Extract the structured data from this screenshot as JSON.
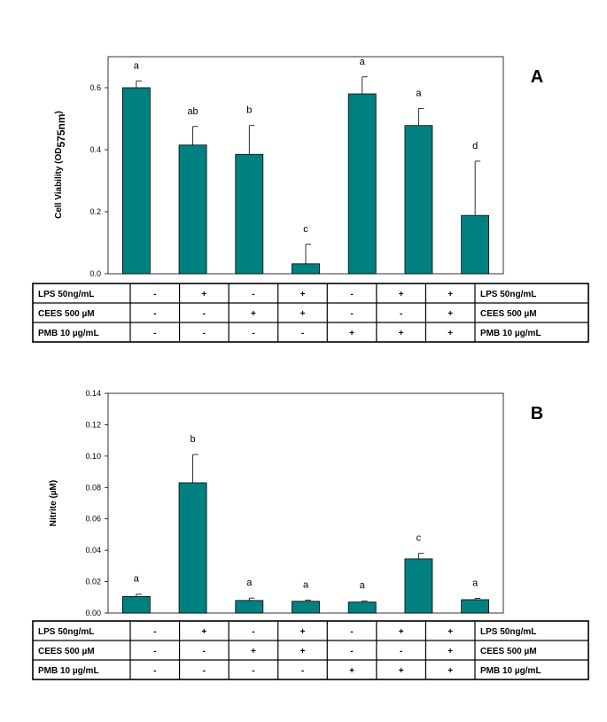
{
  "chart_data": [
    {
      "type": "bar",
      "panel_label": "A",
      "ylabel": "Cell Viability (OD",
      "ylabel_sub": "575nm",
      "ylabel_close": ")",
      "ylim": [
        0,
        0.7
      ],
      "yticks": [
        "0.0",
        "0.2",
        "0.4",
        "0.6"
      ],
      "ytick_values": [
        0,
        0.2,
        0.4,
        0.6
      ],
      "values": [
        0.6,
        0.415,
        0.385,
        0.032,
        0.58,
        0.478,
        0.188
      ],
      "errors": [
        0.022,
        0.06,
        0.093,
        0.063,
        0.055,
        0.055,
        0.175
      ],
      "significance": [
        "a",
        "ab",
        "b",
        "c",
        "a",
        "a",
        "d"
      ],
      "bar_color": "#008080",
      "table": {
        "rows": [
          {
            "label": "LPS   50ng/mL",
            "right_label": "LPS   50ng/mL",
            "symbols": [
              "-",
              "+",
              "-",
              "+",
              "-",
              "+",
              "+"
            ]
          },
          {
            "label": "CEES  500 µM",
            "right_label": "CEES  500 µM",
            "symbols": [
              "-",
              "-",
              "+",
              "+",
              "-",
              "-",
              "+"
            ]
          },
          {
            "label": "PMB   10 µg/mL",
            "right_label": "PMB   10 µg/mL",
            "symbols": [
              "-",
              "-",
              "-",
              "-",
              "+",
              "+",
              "+"
            ]
          }
        ]
      }
    },
    {
      "type": "bar",
      "panel_label": "B",
      "ylabel": "Nitrite (",
      "ylabel_mu": "µ",
      "ylabel_close": "M)",
      "ylim": [
        0,
        0.14
      ],
      "yticks": [
        "0.00",
        "0.02",
        "0.04",
        "0.06",
        "0.08",
        "0.10",
        "0.12",
        "0.14"
      ],
      "ytick_values": [
        0,
        0.02,
        0.04,
        0.06,
        0.08,
        0.1,
        0.12,
        0.14
      ],
      "values": [
        0.0105,
        0.083,
        0.008,
        0.0075,
        0.007,
        0.0345,
        0.0085
      ],
      "errors": [
        0.0015,
        0.018,
        0.0015,
        0.0008,
        0.0008,
        0.0035,
        0.0008
      ],
      "significance": [
        "a",
        "b",
        "a",
        "a",
        "a",
        "c",
        "a"
      ],
      "bar_color": "#008080",
      "table": {
        "rows": [
          {
            "label": "LPS   50ng/mL",
            "right_label": "LPS   50ng/mL",
            "symbols": [
              "-",
              "+",
              "-",
              "+",
              "-",
              "+",
              "+"
            ]
          },
          {
            "label": "CEES  500 µM",
            "right_label": "CEES  500 µM",
            "symbols": [
              "-",
              "-",
              "+",
              "+",
              "-",
              "-",
              "+"
            ]
          },
          {
            "label": "PMB   10 µg/mL",
            "right_label": "PMB   10 µg/mL",
            "symbols": [
              "-",
              "-",
              "-",
              "-",
              "+",
              "+",
              "+"
            ]
          }
        ]
      }
    }
  ]
}
